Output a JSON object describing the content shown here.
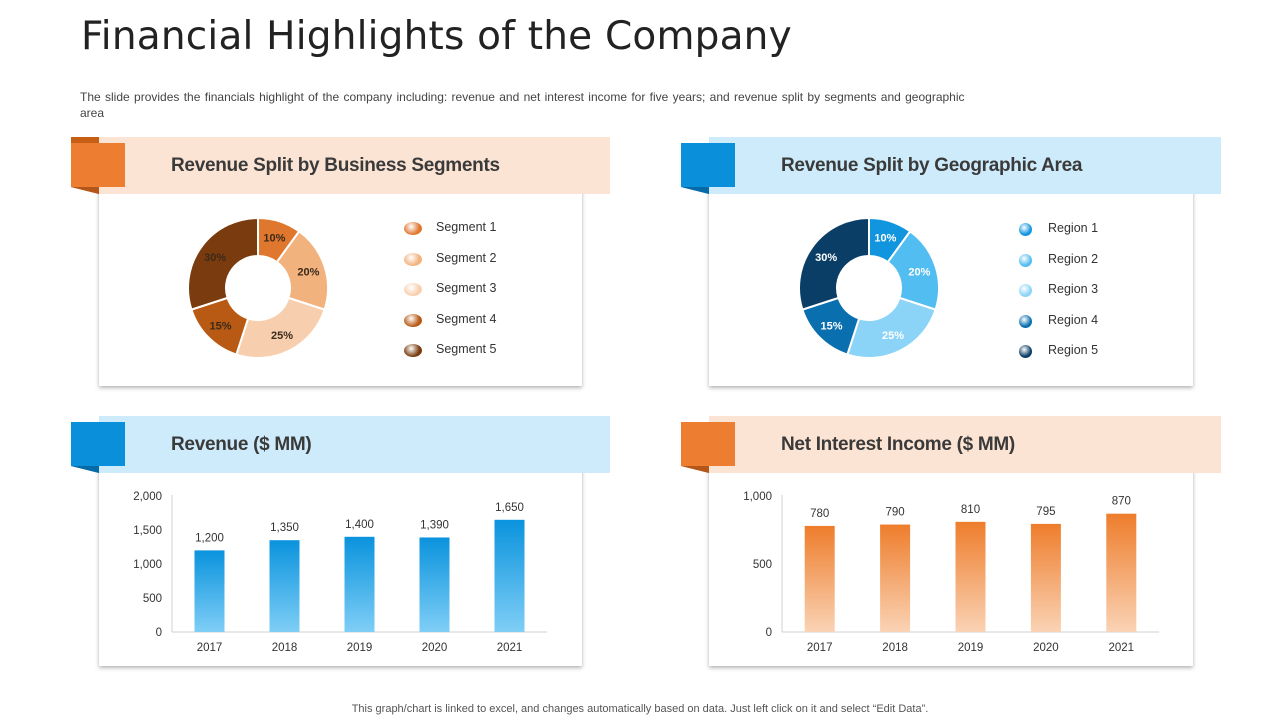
{
  "title": "Financial Highlights of the Company",
  "subtitle": "The slide provides  the financials highlight of the company including: revenue  and net interest income for five  years; and revenue  split by segments and geographic  area",
  "footer": "This graph/chart is linked to excel,  and changes automatically based on data. Just left click on it and select “Edit Data”.",
  "colors": {
    "orange_accent": "#ED7D31",
    "blue_accent": "#0A8FDB",
    "orange_band": "#FCE4D4",
    "blue_band": "#CDEBFB"
  },
  "panels": {
    "segments": {
      "title": "Revenue Split by Business Segments"
    },
    "geo": {
      "title": "Revenue Split by Geographic Area"
    },
    "revenue": {
      "title": "Revenue ($ MM)"
    },
    "nii": {
      "title": "Net Interest Income ($ MM)"
    }
  },
  "chart_data": [
    {
      "id": "segments",
      "type": "pie",
      "title": "Revenue Split by Business Segments",
      "categories": [
        "Segment 1",
        "Segment 2",
        "Segment 3",
        "Segment 4",
        "Segment 5"
      ],
      "values": [
        10,
        20,
        25,
        15,
        30
      ],
      "labels": [
        "10%",
        "20%",
        "25%",
        "15%",
        "30%"
      ],
      "colors": [
        "#E0772E",
        "#F2B27E",
        "#F8CFAE",
        "#B85A14",
        "#7A3C0E"
      ],
      "label_colors": [
        "#3a2a1a",
        "#3a2a1a",
        "#3a2a1a",
        "#3a2a1a",
        "#3a2a1a"
      ],
      "legend_position": "right"
    },
    {
      "id": "geo",
      "type": "pie",
      "title": "Revenue Split by Geographic Area",
      "categories": [
        "Region  1",
        "Region  2",
        "Region  3",
        "Region  4",
        "Region  5"
      ],
      "values": [
        10,
        20,
        25,
        15,
        30
      ],
      "labels": [
        "10%",
        "20%",
        "25%",
        "15%",
        "30%"
      ],
      "colors": [
        "#1295DF",
        "#52BDF1",
        "#8CD4F7",
        "#0A6FAF",
        "#0B3E66"
      ],
      "label_colors": [
        "#ffffff",
        "#ffffff",
        "#ffffff",
        "#ffffff",
        "#ffffff"
      ],
      "legend_position": "right"
    },
    {
      "id": "revenue",
      "type": "bar",
      "title": "Revenue ($ MM)",
      "categories": [
        "2017",
        "2018",
        "2019",
        "2020",
        "2021"
      ],
      "values": [
        1200,
        1350,
        1400,
        1390,
        1650
      ],
      "data_labels": [
        "1,200",
        "1,350",
        "1,400",
        "1,390",
        "1,650"
      ],
      "ylim": [
        0,
        2000
      ],
      "yticks": [
        0,
        500,
        1000,
        1500,
        2000
      ],
      "ytick_labels": [
        "0",
        "500",
        "1,000",
        "1,500",
        "2,000"
      ],
      "color_top": "#0A93DD",
      "color_bottom": "#7FCEF6",
      "grid": false
    },
    {
      "id": "nii",
      "type": "bar",
      "title": "Net Interest Income ($ MM)",
      "categories": [
        "2017",
        "2018",
        "2019",
        "2020",
        "2021"
      ],
      "values": [
        780,
        790,
        810,
        795,
        870
      ],
      "data_labels": [
        "780",
        "790",
        "810",
        "795",
        "870"
      ],
      "ylim": [
        0,
        1000
      ],
      "yticks": [
        0,
        500,
        1000
      ],
      "ytick_labels": [
        "0",
        "500",
        "1,000"
      ],
      "color_top": "#EE7D2C",
      "color_bottom": "#FAD3B5",
      "grid": false
    }
  ]
}
